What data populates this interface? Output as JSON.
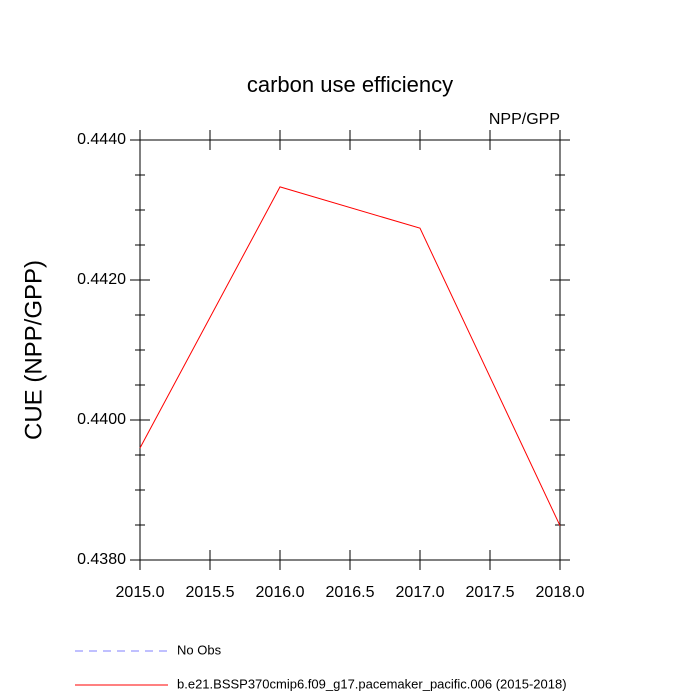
{
  "chart_data": {
    "type": "line",
    "title": "carbon use efficiency",
    "subtitle": "NPP/GPP",
    "y_label": "CUE  (NPP/GPP)",
    "x": [
      2015,
      2016,
      2017,
      2018
    ],
    "series": [
      {
        "name": "No Obs",
        "color": "#8080ff",
        "dash": true,
        "values": [
          null,
          null,
          null,
          null
        ]
      },
      {
        "name": "b.e21.BSSP370cmip6.f09_g17.pacemaker_pacific.006 (2015-2018)",
        "color": "#ff0000",
        "dash": false,
        "values": [
          0.4396,
          0.44333,
          0.44274,
          0.43849
        ]
      }
    ],
    "xlim": [
      2015,
      2018
    ],
    "xticks": [
      {
        "value": 2015,
        "label": "2015.0"
      },
      {
        "value": 2015.5,
        "label": "2015.5"
      },
      {
        "value": 2016,
        "label": "2016.0"
      },
      {
        "value": 2016.5,
        "label": "2016.5"
      },
      {
        "value": 2017,
        "label": "2017.0"
      },
      {
        "value": 2017.5,
        "label": "2017.5"
      },
      {
        "value": 2018,
        "label": "2018.0"
      }
    ],
    "ylim": [
      0.438,
      0.444
    ],
    "yticks": [
      {
        "value": 0.438,
        "label": "0.4380"
      },
      {
        "value": 0.44,
        "label": "0.4400"
      },
      {
        "value": 0.442,
        "label": "0.4420"
      },
      {
        "value": 0.444,
        "label": "0.4440"
      }
    ],
    "yminor_ticks": [
      0.4385,
      0.439,
      0.4395,
      0.4405,
      0.441,
      0.4415,
      0.4425,
      0.443,
      0.4435
    ],
    "legend": "bottom-left"
  }
}
